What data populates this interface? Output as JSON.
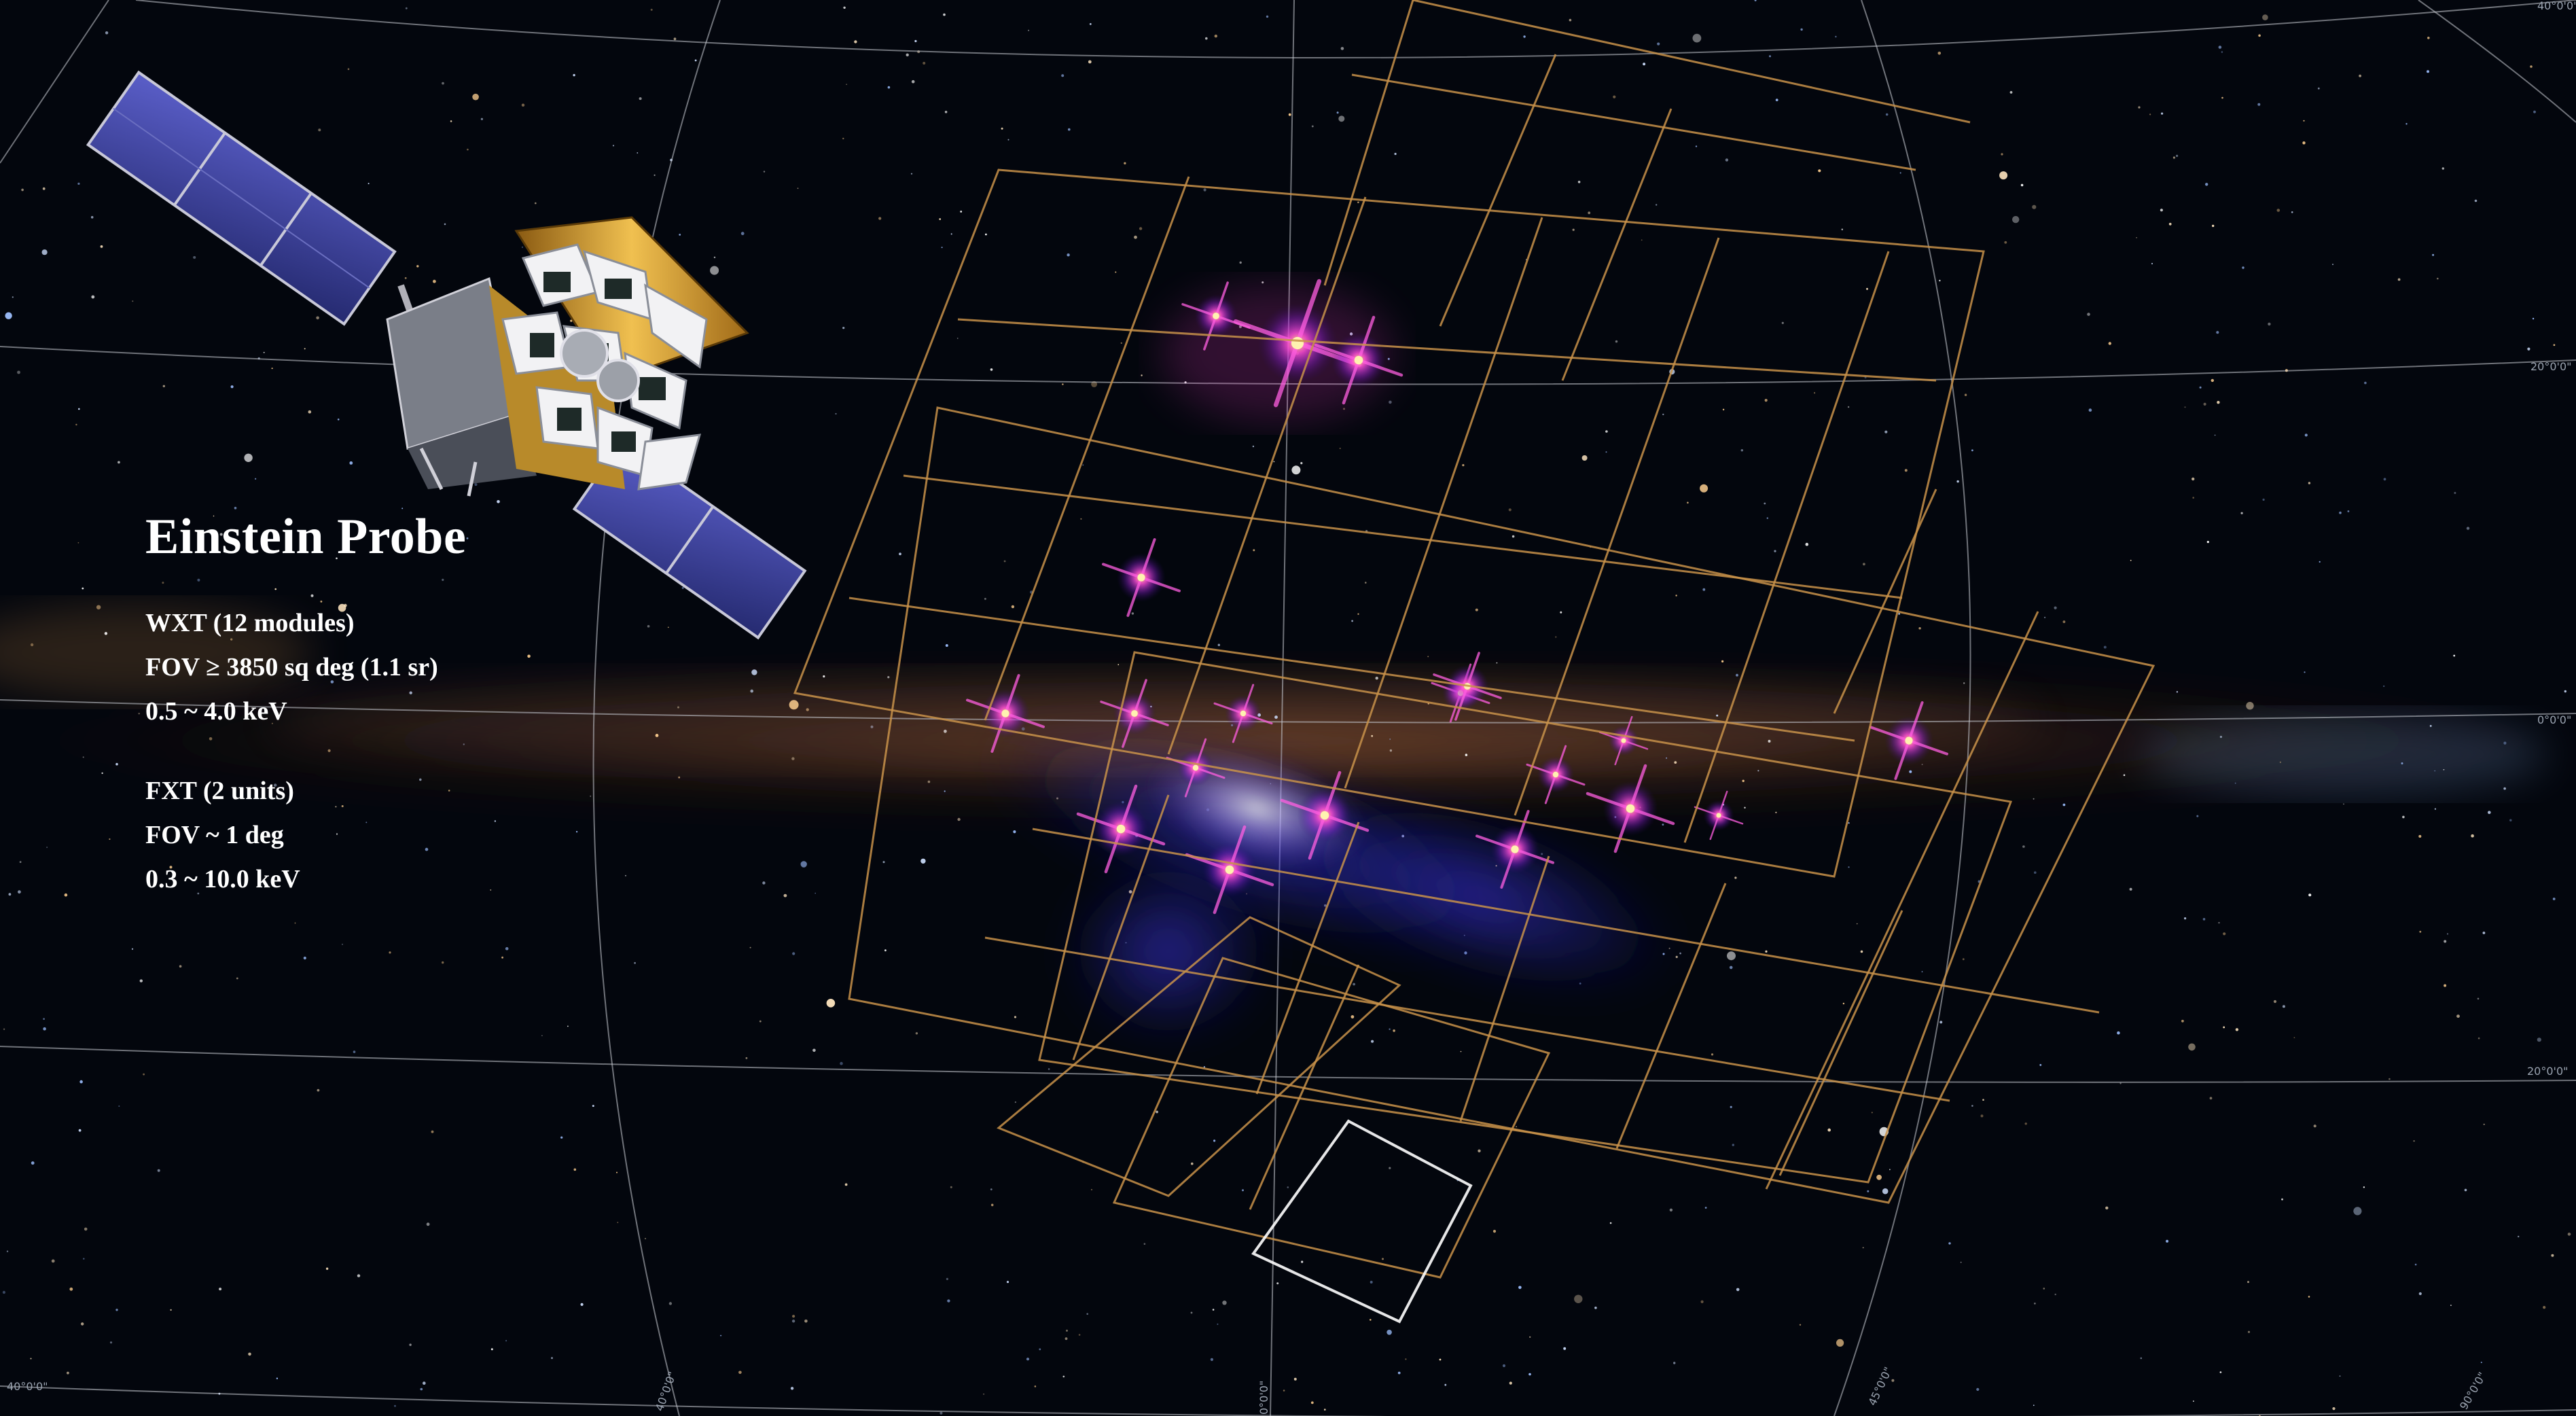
{
  "title": "Einstein Probe",
  "instruments": [
    {
      "lines": [
        "WXT (12 modules)",
        "FOV ≥ 3850 sq deg (1.1 sr)",
        "0.5 ~ 4.0 keV"
      ]
    },
    {
      "lines": [
        "FXT (2 units)",
        "FOV ~ 1 deg",
        "0.3 ~ 10.0 keV"
      ]
    }
  ],
  "grid_labels": [
    "40°0'0\"",
    "20°0'0\"",
    "0°0'0\"",
    "20°0'0\"",
    "40°0'0\"",
    "40°0'0\"",
    "0°0'0\"",
    "45°0'0\"",
    "90°0'0\""
  ],
  "colors": {
    "background": "#03060d",
    "grid_lines": "#c8ccd4",
    "wxt_outline": "#c8924a",
    "fxt_outline": "#ffffff",
    "xray_hot": "#ffd24a",
    "xray_glow": "#ff2fd0",
    "xray_diffuse": "#2a3cff",
    "solar_panel": "#3b3f9e",
    "spacecraft_foil": "#d9a43a"
  },
  "icons": [
    "einstein-probe-satellite-icon"
  ]
}
